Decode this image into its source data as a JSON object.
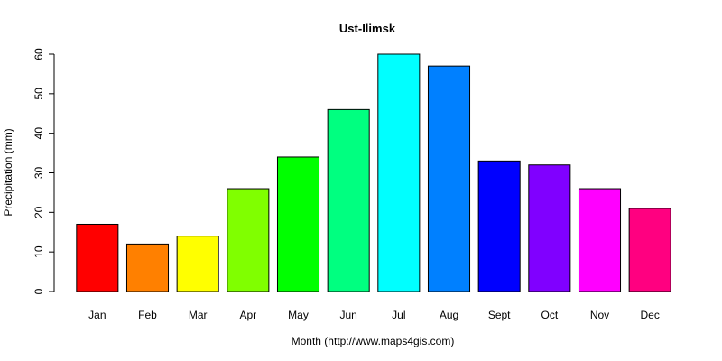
{
  "chart_data": {
    "type": "bar",
    "title": "Ust-Ilimsk",
    "xlabel": "Month (http://www.maps4gis.com)",
    "ylabel": "Precipitation (mm)",
    "categories": [
      "Jan",
      "Feb",
      "Mar",
      "Apr",
      "May",
      "Jun",
      "Jul",
      "Aug",
      "Sept",
      "Oct",
      "Nov",
      "Dec"
    ],
    "values": [
      17,
      12,
      14,
      26,
      34,
      46,
      60,
      57,
      33,
      32,
      26,
      21
    ],
    "colors": [
      "#FF0000",
      "#FF8000",
      "#FFFF00",
      "#80FF00",
      "#00FF00",
      "#00FF80",
      "#00FFFF",
      "#0080FF",
      "#0000FF",
      "#8000FF",
      "#FF00FF",
      "#FF0080"
    ],
    "ylim": [
      0,
      60
    ],
    "yticks": [
      0,
      10,
      20,
      30,
      40,
      50,
      60
    ],
    "grid": false,
    "legend": "none"
  }
}
